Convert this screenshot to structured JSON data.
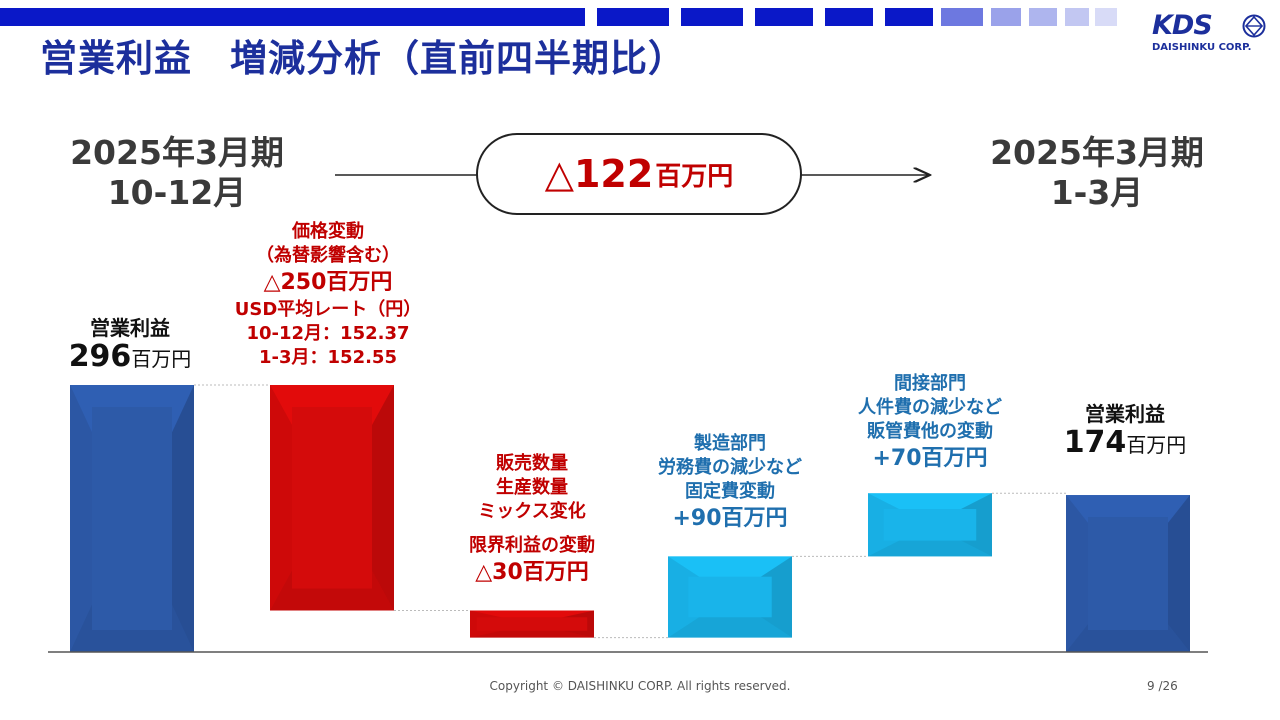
{
  "header": {
    "title": "営業利益　増減分析（直前四半期比）",
    "logo_text": "KDS",
    "logo_corp": "DAISHINKU CORP.",
    "bar_colors": {
      "primary": "#0a18c8",
      "light": "#c8cdf4"
    }
  },
  "periods": {
    "from": {
      "line1": "2025年3月期",
      "line2": "10-12月"
    },
    "to": {
      "line1": "2025年3月期",
      "line2": "1-3月"
    }
  },
  "total_change": {
    "value": "△122",
    "unit": "百万円"
  },
  "labels": {
    "start": {
      "title": "営業利益",
      "value": "296",
      "unit": "百万円"
    },
    "price": {
      "line1": "価格変動",
      "line2": "（為替影響含む）",
      "value": "△250百万円",
      "usd_title": "USD平均レート（円）",
      "usd_prev": "10-12月：152.37",
      "usd_curr": "1-3月：152.55"
    },
    "volume": {
      "line1": "販売数量",
      "line2": "生産数量",
      "line3": "ミックス変化",
      "line4": "限界利益の変動",
      "value": "△30百万円"
    },
    "mfg": {
      "line1": "製造部門",
      "line2": "労務費の減少など",
      "line3": "固定費変動",
      "value": "+90百万円"
    },
    "indirect": {
      "line1": "間接部門",
      "line2": "人件費の減少など",
      "line3": "販管費他の変動",
      "value": "+70百万円"
    },
    "end": {
      "title": "営業利益",
      "value": "174",
      "unit": "百万円"
    }
  },
  "chart_data": {
    "type": "bar",
    "subtype": "waterfall",
    "unit": "百万円",
    "categories": [
      "営業利益 2025年3月期 10-12月",
      "価格変動",
      "限界利益の変動",
      "固定費変動",
      "販管費他の変動",
      "営業利益 2025年3月期 1-3月"
    ],
    "values": [
      296,
      -250,
      -30,
      90,
      70,
      174
    ],
    "kinds": [
      "total",
      "delta",
      "delta",
      "delta",
      "delta",
      "total"
    ],
    "colors": {
      "total": "#2d5aa8",
      "decrease": "#d40b0b",
      "increase": "#19b4ea"
    }
  },
  "footer": {
    "copyright": "Copyright © DAISHINKU CORP. All rights reserved.",
    "page": "9 /26"
  }
}
